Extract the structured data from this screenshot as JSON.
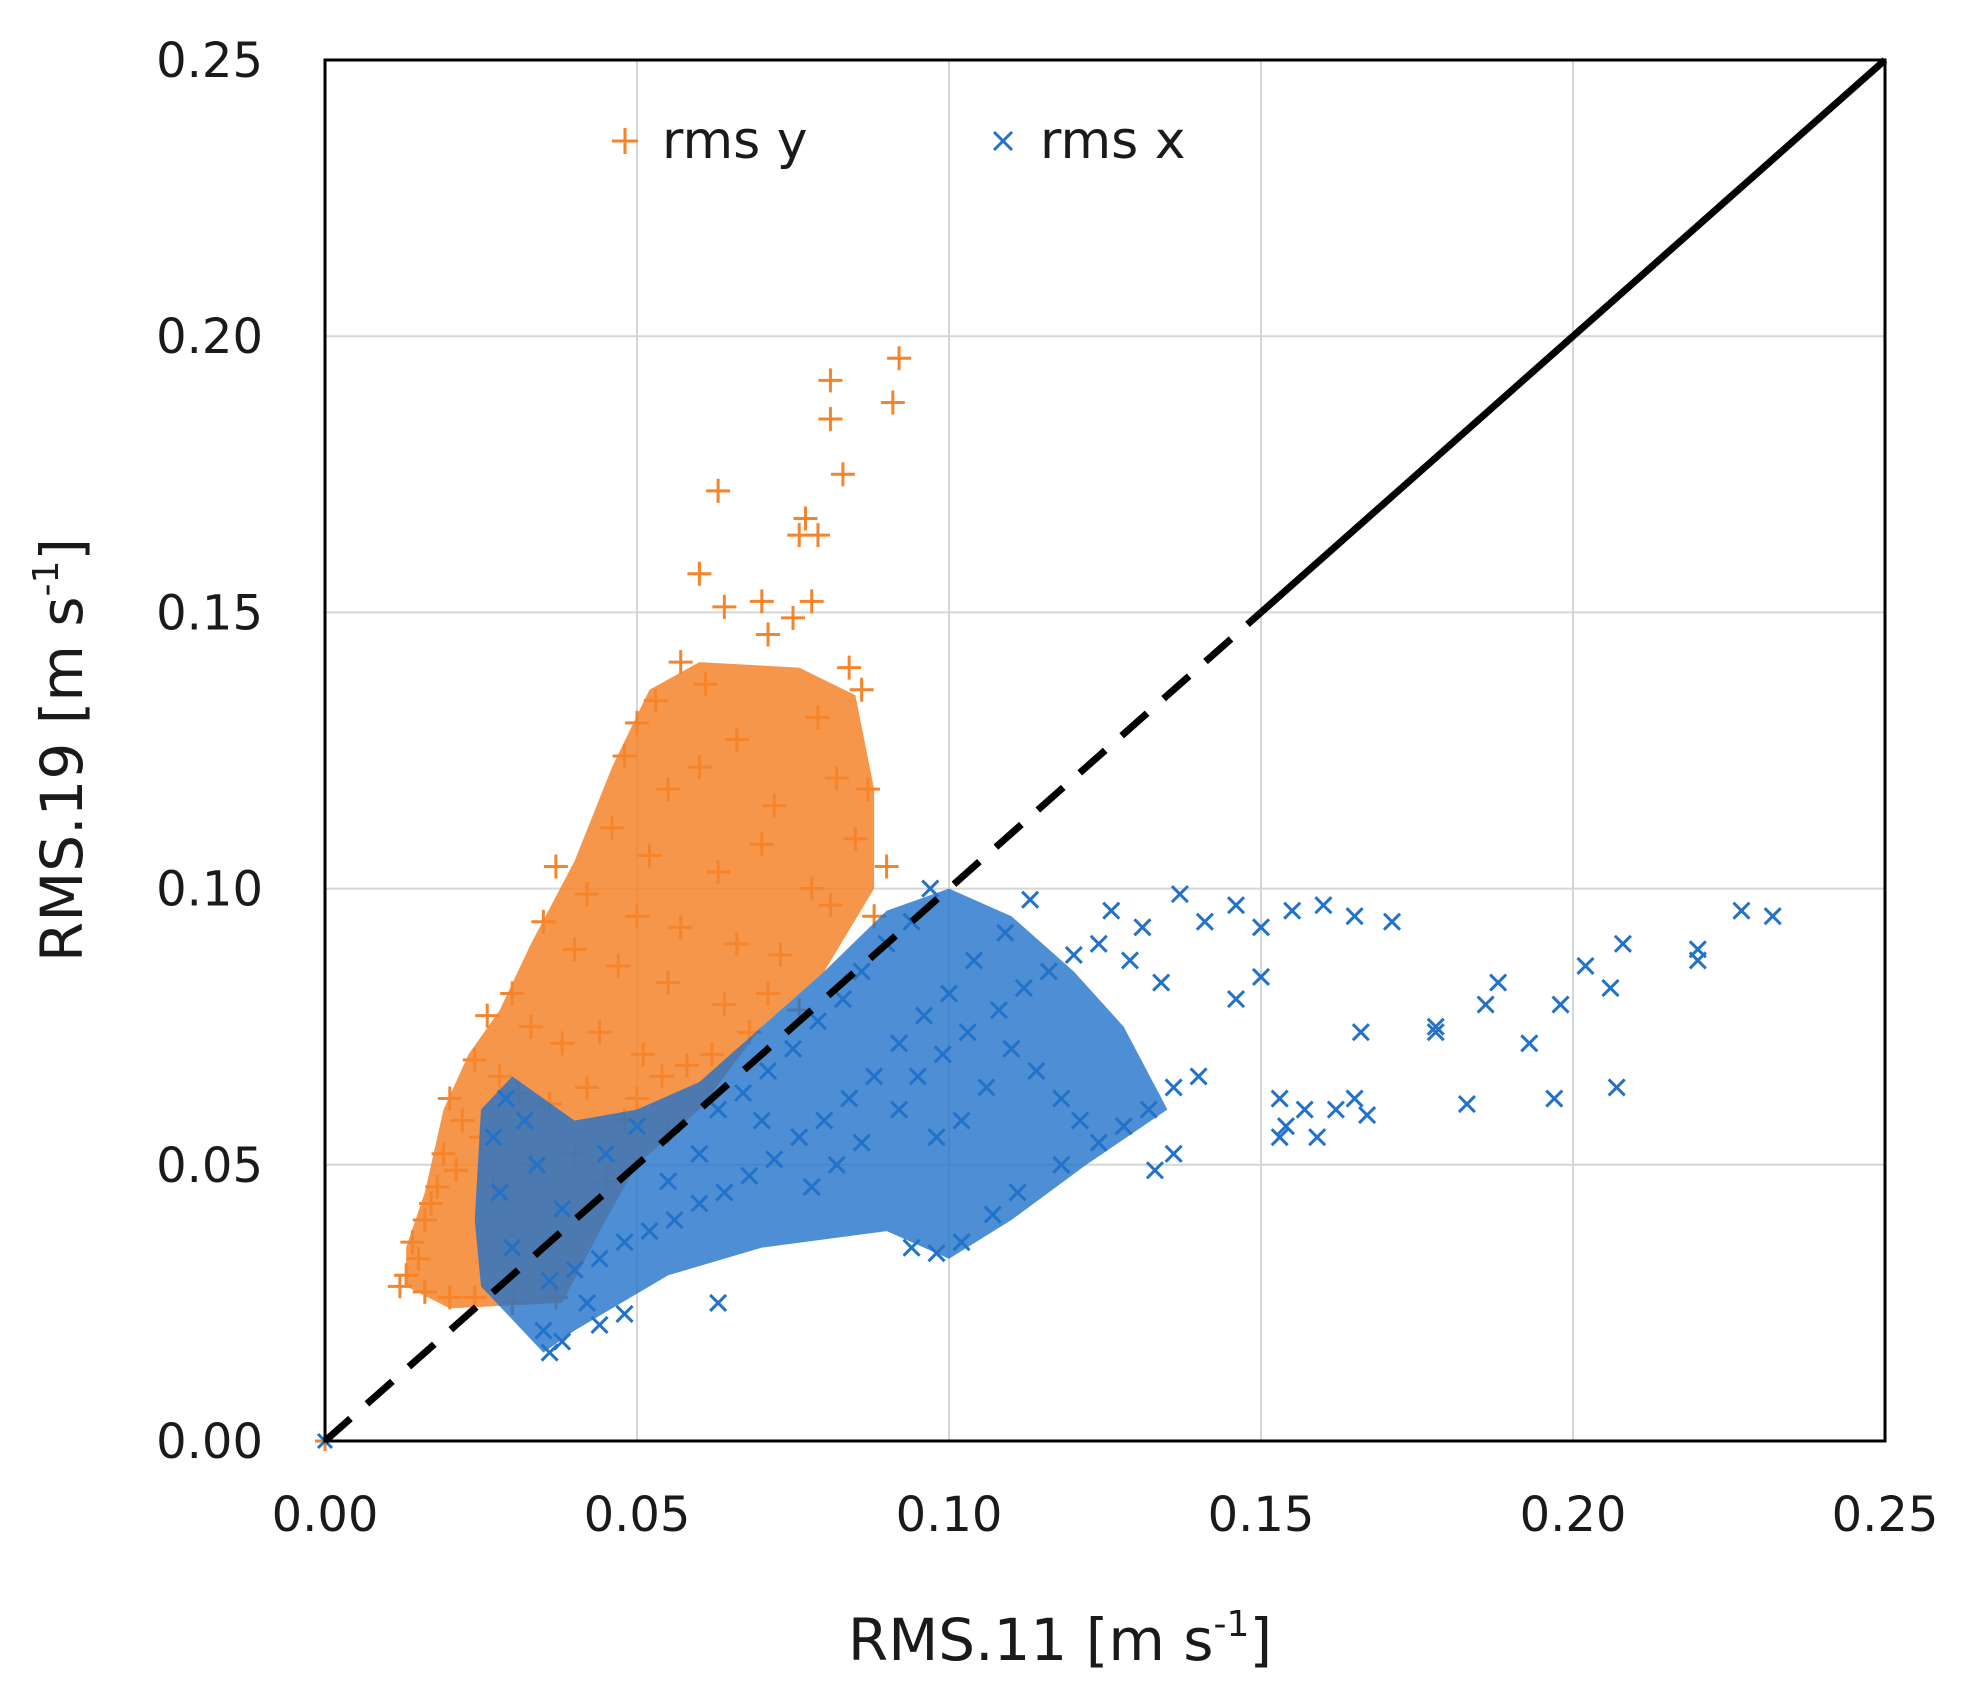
{
  "chart_data": {
    "type": "scatter",
    "title": "",
    "xlabel": "RMS.11 [m s",
    "xlabel_sup": "-1",
    "xlabel_end": "]",
    "ylabel": "RMS.19 [m s",
    "ylabel_sup": "-1",
    "ylabel_end": "]",
    "xlim": [
      0,
      0.25
    ],
    "ylim": [
      0,
      0.25
    ],
    "xticks": [
      "0.00",
      "0.05",
      "0.10",
      "0.15",
      "0.20",
      "0.25"
    ],
    "yticks": [
      "0.00",
      "0.05",
      "0.10",
      "0.15",
      "0.20",
      "0.25"
    ],
    "grid": true,
    "legend_position": "top-left",
    "reference_line": {
      "name": "1:1 line",
      "dashed_from": [
        0,
        0
      ],
      "dashed_to": [
        0.15,
        0.15
      ],
      "solid_from": [
        0.15,
        0.15
      ],
      "solid_to": [
        0.25,
        0.25
      ],
      "color": "#000000"
    },
    "series": [
      {
        "name": "rms y",
        "marker": "plus",
        "color": "#F5842A",
        "points": [
          [
            0.092,
            0.196
          ],
          [
            0.081,
            0.192
          ],
          [
            0.091,
            0.188
          ],
          [
            0.081,
            0.185
          ],
          [
            0.083,
            0.175
          ],
          [
            0.063,
            0.172
          ],
          [
            0.077,
            0.167
          ],
          [
            0.079,
            0.164
          ],
          [
            0.076,
            0.164
          ],
          [
            0.06,
            0.157
          ],
          [
            0.064,
            0.151
          ],
          [
            0.07,
            0.152
          ],
          [
            0.075,
            0.149
          ],
          [
            0.078,
            0.152
          ],
          [
            0.071,
            0.146
          ],
          [
            0.057,
            0.141
          ],
          [
            0.061,
            0.137
          ],
          [
            0.084,
            0.14
          ],
          [
            0.086,
            0.136
          ],
          [
            0.053,
            0.134
          ],
          [
            0.05,
            0.13
          ],
          [
            0.066,
            0.127
          ],
          [
            0.079,
            0.131
          ],
          [
            0.082,
            0.12
          ],
          [
            0.087,
            0.118
          ],
          [
            0.048,
            0.124
          ],
          [
            0.055,
            0.118
          ],
          [
            0.06,
            0.122
          ],
          [
            0.072,
            0.115
          ],
          [
            0.085,
            0.109
          ],
          [
            0.09,
            0.104
          ],
          [
            0.046,
            0.111
          ],
          [
            0.052,
            0.106
          ],
          [
            0.063,
            0.103
          ],
          [
            0.07,
            0.108
          ],
          [
            0.078,
            0.1
          ],
          [
            0.081,
            0.097
          ],
          [
            0.088,
            0.095
          ],
          [
            0.037,
            0.104
          ],
          [
            0.042,
            0.099
          ],
          [
            0.05,
            0.095
          ],
          [
            0.057,
            0.093
          ],
          [
            0.066,
            0.09
          ],
          [
            0.073,
            0.088
          ],
          [
            0.035,
            0.094
          ],
          [
            0.04,
            0.089
          ],
          [
            0.047,
            0.086
          ],
          [
            0.055,
            0.083
          ],
          [
            0.064,
            0.079
          ],
          [
            0.071,
            0.081
          ],
          [
            0.076,
            0.078
          ],
          [
            0.026,
            0.077
          ],
          [
            0.03,
            0.081
          ],
          [
            0.033,
            0.075
          ],
          [
            0.038,
            0.072
          ],
          [
            0.044,
            0.074
          ],
          [
            0.051,
            0.07
          ],
          [
            0.058,
            0.068
          ],
          [
            0.024,
            0.069
          ],
          [
            0.028,
            0.066
          ],
          [
            0.031,
            0.063
          ],
          [
            0.036,
            0.061
          ],
          [
            0.042,
            0.064
          ],
          [
            0.048,
            0.058
          ],
          [
            0.055,
            0.056
          ],
          [
            0.02,
            0.062
          ],
          [
            0.022,
            0.058
          ],
          [
            0.025,
            0.055
          ],
          [
            0.019,
            0.052
          ],
          [
            0.021,
            0.049
          ],
          [
            0.018,
            0.046
          ],
          [
            0.017,
            0.043
          ],
          [
            0.016,
            0.04
          ],
          [
            0.014,
            0.036
          ],
          [
            0.015,
            0.033
          ],
          [
            0.013,
            0.03
          ],
          [
            0.012,
            0.028
          ],
          [
            0.016,
            0.027
          ],
          [
            0.02,
            0.026
          ],
          [
            0.024,
            0.026
          ],
          [
            0.03,
            0.025
          ],
          [
            0.037,
            0.026
          ],
          [
            0.027,
            0.046
          ],
          [
            0.033,
            0.05
          ],
          [
            0.04,
            0.052
          ],
          [
            0.045,
            0.047
          ],
          [
            0.05,
            0.062
          ],
          [
            0.054,
            0.066
          ],
          [
            0.062,
            0.07
          ],
          [
            0.068,
            0.074
          ]
        ]
      },
      {
        "name": "rms x",
        "marker": "cross",
        "color": "#2272C9",
        "points": [
          [
            0.232,
            0.095
          ],
          [
            0.227,
            0.096
          ],
          [
            0.22,
            0.089
          ],
          [
            0.22,
            0.087
          ],
          [
            0.208,
            0.09
          ],
          [
            0.207,
            0.064
          ],
          [
            0.206,
            0.082
          ],
          [
            0.202,
            0.086
          ],
          [
            0.198,
            0.079
          ],
          [
            0.197,
            0.062
          ],
          [
            0.193,
            0.072
          ],
          [
            0.188,
            0.083
          ],
          [
            0.186,
            0.079
          ],
          [
            0.183,
            0.061
          ],
          [
            0.178,
            0.075
          ],
          [
            0.178,
            0.074
          ],
          [
            0.167,
            0.059
          ],
          [
            0.166,
            0.074
          ],
          [
            0.165,
            0.062
          ],
          [
            0.162,
            0.06
          ],
          [
            0.159,
            0.055
          ],
          [
            0.157,
            0.06
          ],
          [
            0.154,
            0.057
          ],
          [
            0.153,
            0.062
          ],
          [
            0.153,
            0.055
          ],
          [
            0.171,
            0.094
          ],
          [
            0.165,
            0.095
          ],
          [
            0.16,
            0.097
          ],
          [
            0.155,
            0.096
          ],
          [
            0.15,
            0.093
          ],
          [
            0.146,
            0.097
          ],
          [
            0.141,
            0.094
          ],
          [
            0.137,
            0.099
          ],
          [
            0.131,
            0.093
          ],
          [
            0.126,
            0.096
          ],
          [
            0.14,
            0.066
          ],
          [
            0.136,
            0.064
          ],
          [
            0.132,
            0.06
          ],
          [
            0.128,
            0.057
          ],
          [
            0.136,
            0.052
          ],
          [
            0.133,
            0.049
          ],
          [
            0.146,
            0.08
          ],
          [
            0.15,
            0.084
          ],
          [
            0.121,
            0.058
          ],
          [
            0.118,
            0.062
          ],
          [
            0.114,
            0.067
          ],
          [
            0.11,
            0.071
          ],
          [
            0.106,
            0.064
          ],
          [
            0.102,
            0.058
          ],
          [
            0.098,
            0.055
          ],
          [
            0.113,
            0.098
          ],
          [
            0.109,
            0.092
          ],
          [
            0.104,
            0.087
          ],
          [
            0.1,
            0.081
          ],
          [
            0.096,
            0.077
          ],
          [
            0.092,
            0.072
          ],
          [
            0.088,
            0.066
          ],
          [
            0.084,
            0.062
          ],
          [
            0.08,
            0.058
          ],
          [
            0.076,
            0.055
          ],
          [
            0.072,
            0.051
          ],
          [
            0.068,
            0.048
          ],
          [
            0.064,
            0.045
          ],
          [
            0.06,
            0.043
          ],
          [
            0.056,
            0.04
          ],
          [
            0.052,
            0.038
          ],
          [
            0.048,
            0.036
          ],
          [
            0.044,
            0.033
          ],
          [
            0.04,
            0.031
          ],
          [
            0.036,
            0.029
          ],
          [
            0.097,
            0.1
          ],
          [
            0.094,
            0.094
          ],
          [
            0.09,
            0.09
          ],
          [
            0.086,
            0.085
          ],
          [
            0.083,
            0.08
          ],
          [
            0.079,
            0.076
          ],
          [
            0.075,
            0.071
          ],
          [
            0.071,
            0.067
          ],
          [
            0.067,
            0.063
          ],
          [
            0.063,
            0.06
          ],
          [
            0.102,
            0.036
          ],
          [
            0.098,
            0.034
          ],
          [
            0.094,
            0.035
          ],
          [
            0.107,
            0.041
          ],
          [
            0.111,
            0.045
          ],
          [
            0.118,
            0.05
          ],
          [
            0.124,
            0.054
          ],
          [
            0.063,
            0.025
          ],
          [
            0.048,
            0.023
          ],
          [
            0.044,
            0.021
          ],
          [
            0.038,
            0.018
          ],
          [
            0.036,
            0.016
          ],
          [
            0.035,
            0.02
          ],
          [
            0.042,
            0.025
          ],
          [
            0.03,
            0.035
          ],
          [
            0.028,
            0.045
          ],
          [
            0.027,
            0.055
          ],
          [
            0.029,
            0.062
          ],
          [
            0.032,
            0.058
          ],
          [
            0.034,
            0.05
          ],
          [
            0.038,
            0.042
          ],
          [
            0.045,
            0.052
          ],
          [
            0.05,
            0.057
          ],
          [
            0.055,
            0.047
          ],
          [
            0.06,
            0.052
          ],
          [
            0.07,
            0.058
          ],
          [
            0.078,
            0.046
          ],
          [
            0.082,
            0.05
          ],
          [
            0.086,
            0.054
          ],
          [
            0.092,
            0.06
          ],
          [
            0.095,
            0.066
          ],
          [
            0.099,
            0.07
          ],
          [
            0.103,
            0.074
          ],
          [
            0.108,
            0.078
          ],
          [
            0.112,
            0.082
          ],
          [
            0.116,
            0.085
          ],
          [
            0.12,
            0.088
          ],
          [
            0.124,
            0.09
          ],
          [
            0.129,
            0.087
          ],
          [
            0.134,
            0.083
          ]
        ]
      }
    ]
  }
}
